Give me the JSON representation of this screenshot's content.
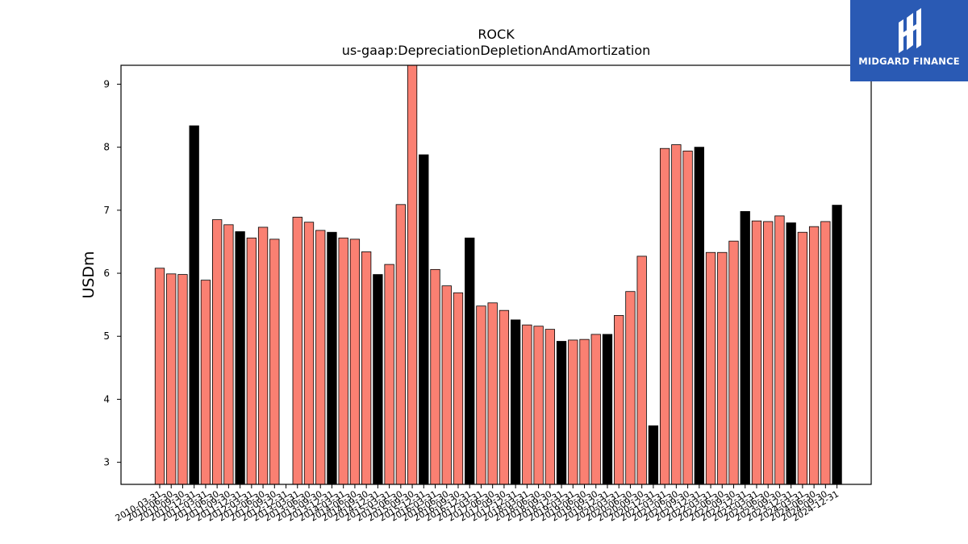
{
  "brand": {
    "name": "MIDGARD FINANCE",
    "bg_color": "#2a5ab4",
    "icon": "midgard-logo-icon"
  },
  "chart_data": {
    "type": "bar",
    "title": "ROCK",
    "subtitle": "us-gaap:DepreciationDepletionAndAmortization",
    "xlabel": "",
    "ylabel": "USDm",
    "ylim": [
      2.65,
      9.3
    ],
    "yticks": [
      3,
      4,
      5,
      6,
      7,
      8,
      9
    ],
    "colors": {
      "quarter": "#fa8072",
      "annual": "#000000",
      "edge": "#000000"
    },
    "grid": false,
    "categories": [
      "2010-03-31",
      "2010-06-30",
      "2010-09-30",
      "2010-12-31",
      "2011-03-31",
      "2011-06-30",
      "2011-09-30",
      "2011-12-31",
      "2012-03-31",
      "2012-06-30",
      "2012-09-30",
      "2012-12-31",
      "2013-03-31",
      "2013-06-30",
      "2013-09-30",
      "2013-12-31",
      "2014-03-31",
      "2014-06-30",
      "2014-09-30",
      "2014-12-31",
      "2015-03-31",
      "2015-06-30",
      "2015-09-30",
      "2015-12-31",
      "2016-03-31",
      "2016-06-30",
      "2016-09-30",
      "2016-12-31",
      "2017-03-31",
      "2017-06-30",
      "2017-09-30",
      "2017-12-31",
      "2018-03-31",
      "2018-06-30",
      "2018-09-30",
      "2018-12-31",
      "2019-03-31",
      "2019-06-30",
      "2019-09-30",
      "2019-12-31",
      "2020-03-31",
      "2020-06-30",
      "2020-09-30",
      "2020-12-31",
      "2021-03-31",
      "2021-06-30",
      "2021-09-30",
      "2021-12-31",
      "2022-03-31",
      "2022-06-30",
      "2022-09-30",
      "2022-12-31",
      "2023-03-31",
      "2023-06-30",
      "2023-09-30",
      "2023-12-31",
      "2024-03-31",
      "2024-06-30",
      "2024-09-30",
      "2024-12-31"
    ],
    "values": [
      6.08,
      5.99,
      5.98,
      8.34,
      5.89,
      6.85,
      6.77,
      6.66,
      6.56,
      6.73,
      6.54,
      null,
      6.89,
      6.81,
      6.68,
      6.65,
      6.56,
      6.54,
      6.34,
      5.98,
      6.14,
      7.09,
      9.3,
      7.88,
      6.06,
      5.8,
      5.69,
      6.56,
      5.48,
      5.53,
      5.41,
      5.26,
      5.18,
      5.16,
      5.11,
      4.92,
      4.94,
      4.95,
      5.03,
      5.03,
      5.33,
      5.71,
      6.27,
      3.58,
      7.98,
      8.04,
      7.94,
      8.0,
      6.33,
      6.33,
      6.51,
      6.98,
      6.83,
      6.82,
      6.91,
      6.8,
      6.65,
      6.74,
      6.82,
      7.08
    ]
  }
}
